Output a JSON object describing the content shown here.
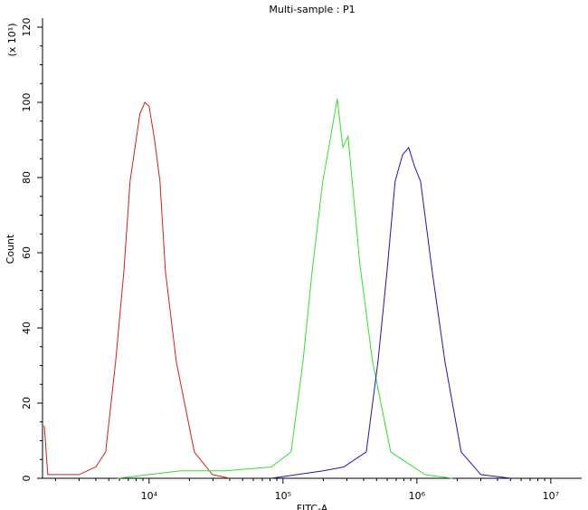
{
  "chart_data": {
    "type": "line",
    "title": "Multi-sample : P1",
    "x_label": "FITC-A",
    "y_label": "Count",
    "y_multiplier": "(x 10¹)",
    "xscale": "log",
    "xlim": [
      1600,
      17000000
    ],
    "xticks": [
      {
        "value": 10000,
        "label": "10⁴"
      },
      {
        "value": 100000,
        "label": "10⁵"
      },
      {
        "value": 1000000,
        "label": "10⁶"
      },
      {
        "value": 10000000,
        "label": "10⁷"
      }
    ],
    "ylim": [
      0,
      120
    ],
    "yticks": [
      0,
      20,
      40,
      60,
      80,
      100,
      120
    ],
    "series": [
      {
        "color": "#cc2222",
        "x": [
          1650,
          1750,
          3000,
          4000,
          4740,
          5620,
          6480,
          7210,
          8550,
          9300,
          10000,
          11000,
          12050,
          13240,
          15960,
          21770,
          29700,
          40000
        ],
        "values": [
          14,
          1,
          1,
          3,
          7,
          31,
          55,
          79,
          97,
          100,
          99,
          90,
          79,
          55,
          31,
          7,
          1,
          0
        ]
      },
      {
        "color": "#33dd33",
        "x": [
          5810,
          17200,
          37500,
          81700,
          115000,
          141000,
          165000,
          198000,
          230000,
          254000,
          280000,
          306000,
          375000,
          467000,
          637000,
          1150000,
          1840000
        ],
        "values": [
          0,
          2,
          2,
          3,
          7,
          31,
          55,
          79,
          92,
          101,
          88,
          91,
          57,
          31,
          7,
          1,
          0
        ]
      },
      {
        "color": "#1a1aaa",
        "x": [
          81700,
          200000,
          284000,
          419000,
          512000,
          598000,
          688000,
          780000,
          869000,
          960000,
          1064000,
          1302000,
          1620000,
          2142000,
          3000000,
          5050000
        ],
        "values": [
          0,
          2,
          3,
          7,
          31,
          55,
          79,
          86,
          88,
          83,
          79,
          55,
          31,
          7,
          1,
          0
        ]
      }
    ]
  }
}
